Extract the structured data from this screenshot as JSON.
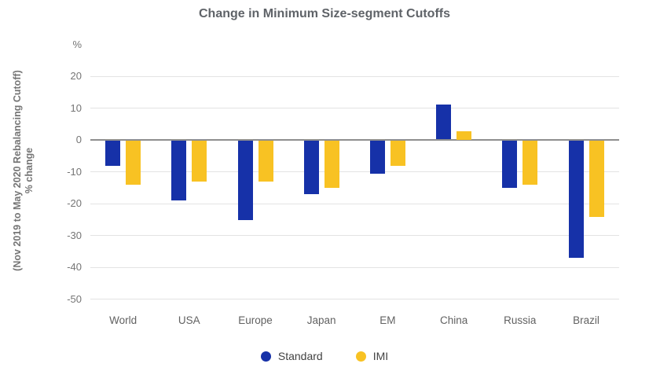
{
  "chart_data": {
    "type": "bar",
    "title": "Change in Minimum Size-segment Cutoffs",
    "ylabel": "% change",
    "ylabel_sub": "(Nov 2019 to May 2020 Rebalancing Cutoff)",
    "y_unit": "%",
    "xlabel": "",
    "categories": [
      "World",
      "USA",
      "Europe",
      "Japan",
      "EM",
      "China",
      "Russia",
      "Brazil"
    ],
    "series": [
      {
        "name": "Standard",
        "color": "#1631A8",
        "values": [
          -8,
          -19,
          -25,
          -17,
          -10.5,
          11,
          -15,
          -37
        ]
      },
      {
        "name": "IMI",
        "color": "#F8C223",
        "values": [
          -14,
          -13,
          -13,
          -15,
          -8,
          2.5,
          -14,
          -24
        ]
      }
    ],
    "yticks": [
      20,
      10,
      0,
      -10,
      -20,
      -30,
      -40,
      -50
    ],
    "ylim": [
      -53,
      31
    ],
    "grid": true,
    "legend_position": "bottom",
    "colors": {
      "gridline": "#e3e3e3",
      "zero_axis": "#8e8e8e",
      "title_text": "#5f6368",
      "tick_text": "#757575",
      "category_text": "#616161",
      "legend_text": "#424242"
    }
  }
}
